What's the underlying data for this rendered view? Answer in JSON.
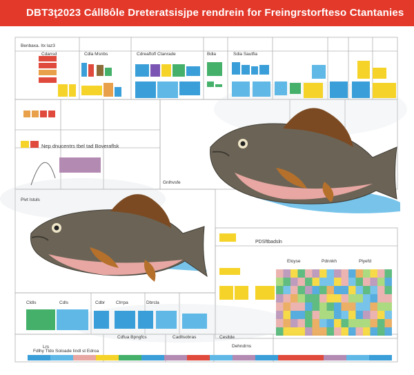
{
  "title": "DBT3ţ2023 Cáll8ôle Dreteratsisjpe rendrein for Freingrstorfteso Ctantanies",
  "labels": {
    "top_left_header": "Benbaxa. Itx laz3",
    "panel_a_title": "Cdansd",
    "panel_b_title": "Cdla Msnbs",
    "panel_c_title": "Cdreaftofl Ctanrade",
    "panel_d_title": "Bdia",
    "panel_e_title": "Sdia Sautfia",
    "callout_main": "Nep dnucentrs tbel tad Boveraflsk",
    "vertical_chart_label": "Gnlhvsfe",
    "fish_left_label": "Pivt Istuls",
    "right_panel_title": "PDSftbadsln",
    "bottom_panel_1": "Cldls",
    "bottom_panel_2": "Cdls",
    "bottom_panel_3": "Cdbr",
    "bottom_panel_4": "Clrrpa",
    "bottom_panel_5": "Dbrcla",
    "bottom_strip_a": "Cdfua Bpngfcs",
    "bottom_strip_b": "Cadllsobras",
    "bottom_strip_c": "Cesltde",
    "bottom_strip_d": "Dehndrns",
    "bottom_left_a": "Lrs",
    "bottom_left_b": "Fdlhy Tldo Soloade lindl st Edroa",
    "small_note_1": "Eloyse",
    "small_note_2": "Pdnnkh",
    "small_note_3": "Plyefd"
  },
  "colors": {
    "banner": "#e3392a",
    "water": "#5fb8e6",
    "fish_body": "#6b6456",
    "fish_belly": "#e8a7a2",
    "fin": "#b5702c",
    "yellow": "#f5d328",
    "blue": "#3a9fd8",
    "green": "#44b06a",
    "red": "#e04a3c",
    "purple": "#b38bb2"
  }
}
